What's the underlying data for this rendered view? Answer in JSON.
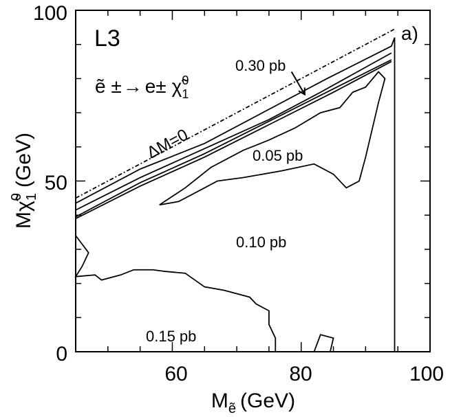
{
  "chart_data": {
    "type": "line",
    "experiment_label": "L3",
    "panel_label": "a)",
    "process_label": {
      "lhs": "ẽ ±",
      "arrow": "→",
      "rhs_e": "e±",
      "rhs_chi": "χ̃",
      "rhs_sub": "1",
      "rhs_sup": "0"
    },
    "xlabel": {
      "main": "M",
      "sub": "ẽ",
      "unit": "(GeV)"
    },
    "ylabel": {
      "main": "M",
      "chi": "χ̃",
      "sub": "1",
      "sup": "0",
      "unit": "(GeV)"
    },
    "xlim": [
      45,
      100
    ],
    "ylim": [
      0,
      100
    ],
    "xticks": [
      60,
      80,
      100
    ],
    "yticks": [
      0,
      50,
      100
    ],
    "xtick_labels": [
      "60",
      "80",
      "100"
    ],
    "ytick_labels": [
      "0",
      "50",
      "100"
    ],
    "grid": false,
    "annotations": {
      "deltaM_label": "ΔM=0",
      "contour_030_label": "0.30 pb",
      "contour_005_label": "0.05 pb",
      "contour_010_label": "0.10 pb",
      "contour_015_label": "0.15 pb"
    },
    "series": [
      {
        "style": "dashdot",
        "points": [
          [
            45,
            45
          ],
          [
            94.5,
            94.5
          ]
        ]
      },
      {
        "style": "solid",
        "points": [
          [
            45,
            43.5
          ],
          [
            55,
            53.5
          ],
          [
            65,
            61
          ],
          [
            75,
            71
          ],
          [
            84,
            80
          ],
          [
            94,
            89.5
          ],
          [
            94.5,
            92
          ]
        ]
      },
      {
        "style": "solid",
        "points": [
          [
            45,
            41.5
          ],
          [
            55,
            51
          ],
          [
            65,
            59.5
          ],
          [
            75,
            68
          ],
          [
            83,
            76
          ],
          [
            94,
            87.5
          ]
        ]
      },
      {
        "style": "solid",
        "points": [
          [
            45,
            39.5
          ],
          [
            55,
            49.5
          ],
          [
            65,
            58
          ],
          [
            75,
            67.5
          ],
          [
            85,
            77
          ],
          [
            94,
            85.5
          ]
        ]
      },
      {
        "style": "solid",
        "points": [
          [
            45,
            39
          ],
          [
            55,
            48.5
          ],
          [
            65,
            57
          ],
          [
            75,
            66.5
          ],
          [
            85,
            76
          ],
          [
            94,
            85
          ]
        ]
      },
      {
        "style": "solid",
        "points": [
          [
            58,
            43
          ],
          [
            62,
            48
          ],
          [
            66,
            54
          ],
          [
            71,
            59
          ],
          [
            75,
            62
          ],
          [
            79,
            65.5
          ],
          [
            83,
            70
          ],
          [
            86,
            71.5
          ],
          [
            88,
            76
          ],
          [
            90,
            77.5
          ],
          [
            92,
            82
          ],
          [
            93,
            80
          ],
          [
            92,
            73
          ],
          [
            91,
            65
          ],
          [
            90,
            57
          ],
          [
            89,
            50
          ],
          [
            87,
            48
          ],
          [
            85,
            52
          ],
          [
            82,
            55
          ],
          [
            77,
            53
          ],
          [
            71,
            51
          ],
          [
            67,
            50
          ],
          [
            64,
            47
          ],
          [
            61,
            44
          ],
          [
            58,
            43
          ]
        ]
      },
      {
        "style": "solid",
        "points": [
          [
            45,
            34
          ],
          [
            47,
            29
          ],
          [
            46,
            25
          ],
          [
            45,
            22
          ],
          [
            48,
            22.5
          ],
          [
            49,
            21
          ],
          [
            52,
            22.5
          ],
          [
            54,
            24
          ],
          [
            57,
            24
          ],
          [
            59,
            23.5
          ],
          [
            62,
            23
          ],
          [
            65,
            19
          ],
          [
            68,
            18
          ],
          [
            72,
            16
          ],
          [
            73,
            14
          ],
          [
            75,
            12
          ],
          [
            75,
            8
          ],
          [
            76,
            4
          ],
          [
            76,
            0
          ]
        ]
      },
      {
        "style": "solid",
        "points": [
          [
            82,
            0
          ],
          [
            83,
            5
          ],
          [
            85,
            4
          ],
          [
            84.5,
            0
          ]
        ]
      },
      {
        "style": "solid",
        "points": [
          [
            94.5,
            0
          ],
          [
            94.5,
            92
          ]
        ]
      }
    ],
    "arrow": {
      "from": [
        78.5,
        82
      ],
      "to": [
        80.5,
        75.5
      ]
    }
  }
}
